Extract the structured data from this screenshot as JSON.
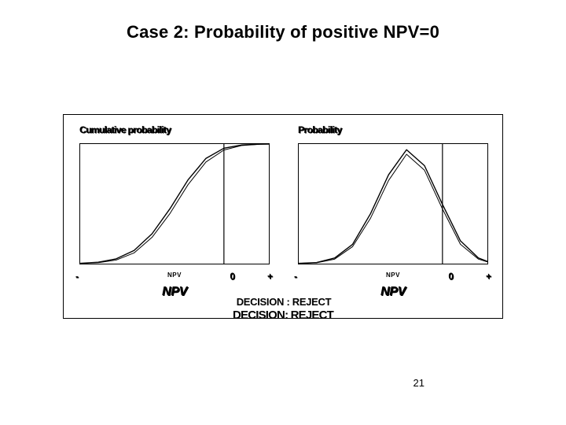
{
  "slide": {
    "title": "Case 2: Probability of positive NPV=0",
    "page_number": "21",
    "title_fontsize": 22
  },
  "decision": {
    "upper": "DECISION : REJECT",
    "lower": "DECISION: REJECT"
  },
  "left_chart": {
    "type": "line",
    "title": "Cumulative probability",
    "xlabel": "NPV",
    "xlabel_small": "NPV",
    "xlim": [
      -3.2,
      1.0
    ],
    "ylim": [
      0,
      1.0
    ],
    "ticks": {
      "minus": "-",
      "zero": "0",
      "plus": "+"
    },
    "zero_line_x": 0,
    "series": [
      {
        "name": "cdf-outer",
        "x": [
          -3.2,
          -2.8,
          -2.4,
          -2.0,
          -1.6,
          -1.2,
          -0.8,
          -0.4,
          0.0,
          0.4,
          0.8,
          1.0
        ],
        "y": [
          0.003,
          0.012,
          0.04,
          0.11,
          0.25,
          0.46,
          0.7,
          0.88,
          0.965,
          0.992,
          0.999,
          1.0
        ],
        "stroke": "#000000",
        "width": 1.4
      },
      {
        "name": "cdf-inner",
        "x": [
          -3.2,
          -2.8,
          -2.4,
          -2.0,
          -1.6,
          -1.2,
          -0.8,
          -0.4,
          0.0,
          0.4,
          0.8,
          1.0
        ],
        "y": [
          0.002,
          0.008,
          0.03,
          0.09,
          0.22,
          0.42,
          0.66,
          0.85,
          0.95,
          0.988,
          0.998,
          1.0
        ],
        "stroke": "#000000",
        "width": 1.0
      }
    ],
    "background_color": "#ffffff",
    "border_color": "#000000"
  },
  "right_chart": {
    "type": "line",
    "title": "Probability",
    "xlabel": "NPV",
    "xlabel_small": "NPV",
    "xlim": [
      -3.2,
      1.0
    ],
    "ylim": [
      0,
      1.05
    ],
    "ticks": {
      "minus": "-",
      "zero": "0",
      "plus": "+"
    },
    "zero_line_x": 0,
    "series": [
      {
        "name": "pdf-outer",
        "x": [
          -3.2,
          -2.8,
          -2.4,
          -2.0,
          -1.6,
          -1.2,
          -0.8,
          -0.4,
          0.0,
          0.4,
          0.8,
          1.0
        ],
        "y": [
          0.003,
          0.01,
          0.05,
          0.17,
          0.44,
          0.78,
          1.0,
          0.86,
          0.52,
          0.2,
          0.05,
          0.02
        ],
        "stroke": "#000000",
        "width": 1.4
      },
      {
        "name": "pdf-inner",
        "x": [
          -3.2,
          -2.8,
          -2.4,
          -2.0,
          -1.6,
          -1.2,
          -0.8,
          -0.4,
          0.0,
          0.4,
          0.8,
          1.0
        ],
        "y": [
          0.002,
          0.008,
          0.04,
          0.15,
          0.4,
          0.73,
          0.96,
          0.82,
          0.48,
          0.17,
          0.04,
          0.015
        ],
        "stroke": "#000000",
        "width": 1.0
      }
    ],
    "background_color": "#ffffff",
    "border_color": "#000000"
  }
}
